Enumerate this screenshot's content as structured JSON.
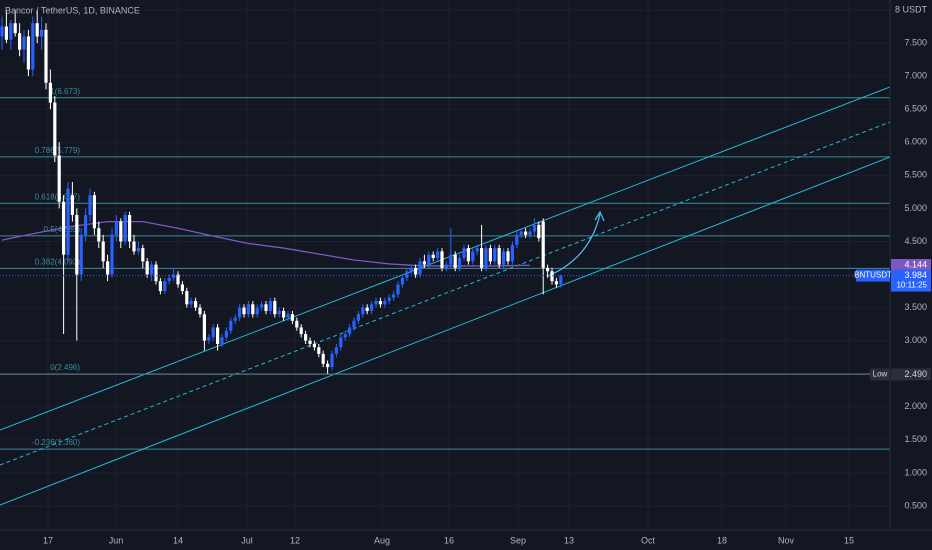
{
  "chart_data": {
    "type": "candlestick",
    "title": "Bancor / TetherUS, 1D, BINANCE",
    "up_color": "#2962ff",
    "down_color": "#ffffff",
    "ma_color": "#7e57c2",
    "channel_color": "#29b6d8",
    "fib_color": "#3a8d9a",
    "ylim": [
      0.5,
      8
    ],
    "yticks": [
      {
        "value": 8,
        "label": "8 USDT"
      },
      {
        "value": 7.5,
        "label": "7.500"
      },
      {
        "value": 7,
        "label": "7.000"
      },
      {
        "value": 6.5,
        "label": "6.500"
      },
      {
        "value": 6,
        "label": "6.000"
      },
      {
        "value": 5.5,
        "label": "5.500"
      },
      {
        "value": 5,
        "label": "5.000"
      },
      {
        "value": 4.5,
        "label": "4.500"
      },
      {
        "value": 3.5,
        "label": "3.500"
      },
      {
        "value": 3,
        "label": "3.000"
      },
      {
        "value": 2,
        "label": "2.000"
      },
      {
        "value": 1.5,
        "label": "1.500"
      },
      {
        "value": 1,
        "label": "1.000"
      },
      {
        "value": 0.5,
        "label": "0.500"
      }
    ],
    "xticks": [
      "17",
      "Jun",
      "14",
      "Jul",
      "12",
      "Aug",
      "16",
      "Sep",
      "13",
      "Oct",
      "18",
      "Nov",
      "15"
    ],
    "fib_levels": [
      {
        "value": 6.673,
        "label": "1(6.673)"
      },
      {
        "value": 5.779,
        "label": "0.786(5.779)"
      },
      {
        "value": 5.077,
        "label": "0.618(5.077)"
      },
      {
        "value": 4.585,
        "label": "0.5(4.585)"
      },
      {
        "value": 4.093,
        "label": "0.382(4.093)"
      },
      {
        "value": 2.496,
        "label": "0(2.496)"
      },
      {
        "value": 1.36,
        "label": "-0.236(1.360)"
      }
    ],
    "ma": [
      4.52,
      4.63,
      4.73,
      4.8,
      4.8,
      4.7,
      4.58,
      4.47,
      4.4,
      4.31,
      4.22,
      4.16,
      4.13,
      4.13,
      4.13,
      4.14
    ],
    "ma_label": {
      "value": 4.144,
      "label": "4.144"
    },
    "last_price": {
      "symbol": "BNTUSDT",
      "value": 3.984,
      "label": "3.984",
      "countdown": "10:11:25"
    },
    "low": {
      "text": "Low",
      "value": 2.49,
      "label": "2.490"
    },
    "candles": [
      [
        7.6,
        7.9,
        7.4,
        7.75
      ],
      [
        7.75,
        8.0,
        7.5,
        7.55
      ],
      [
        7.55,
        7.85,
        7.4,
        7.8
      ],
      [
        7.8,
        8.0,
        7.6,
        7.65
      ],
      [
        7.65,
        7.8,
        7.3,
        7.4
      ],
      [
        7.4,
        7.7,
        7.2,
        7.6
      ],
      [
        7.6,
        7.7,
        7.0,
        7.1
      ],
      [
        7.1,
        7.9,
        7.0,
        7.8
      ],
      [
        7.8,
        8.0,
        7.5,
        7.6
      ],
      [
        7.6,
        7.9,
        7.4,
        7.7
      ],
      [
        7.7,
        7.8,
        6.8,
        6.9
      ],
      [
        6.9,
        7.1,
        6.5,
        6.6
      ],
      [
        6.6,
        6.7,
        5.7,
        5.8
      ],
      [
        5.8,
        6.0,
        5.0,
        5.1
      ],
      [
        5.1,
        5.2,
        3.1,
        4.3
      ],
      [
        4.3,
        5.4,
        4.2,
        5.3
      ],
      [
        5.2,
        5.4,
        4.8,
        4.9
      ],
      [
        4.9,
        5.0,
        3.0,
        4.0
      ],
      [
        4.0,
        4.7,
        3.9,
        4.6
      ],
      [
        4.6,
        5.0,
        4.5,
        4.9
      ],
      [
        4.9,
        5.3,
        4.8,
        5.2
      ],
      [
        5.2,
        5.25,
        4.6,
        4.7
      ],
      [
        4.7,
        4.8,
        4.4,
        4.5
      ],
      [
        4.5,
        4.6,
        4.1,
        4.2
      ],
      [
        4.2,
        4.3,
        3.9,
        4.0
      ],
      [
        4.0,
        4.7,
        3.95,
        4.6
      ],
      [
        4.6,
        4.9,
        4.5,
        4.8
      ],
      [
        4.8,
        4.85,
        4.4,
        4.5
      ],
      [
        4.5,
        4.95,
        4.45,
        4.9
      ],
      [
        4.9,
        4.95,
        4.4,
        4.5
      ],
      [
        4.5,
        4.6,
        4.3,
        4.35
      ],
      [
        4.35,
        4.5,
        4.3,
        4.4
      ],
      [
        4.4,
        4.45,
        4.1,
        4.2
      ],
      [
        4.2,
        4.25,
        3.95,
        4.0
      ],
      [
        4.0,
        4.2,
        3.9,
        4.15
      ],
      [
        4.15,
        4.2,
        3.85,
        3.9
      ],
      [
        3.9,
        3.95,
        3.7,
        3.75
      ],
      [
        3.75,
        3.95,
        3.7,
        3.9
      ],
      [
        3.9,
        4.0,
        3.85,
        3.95
      ],
      [
        3.95,
        4.1,
        3.9,
        4.0
      ],
      [
        4.0,
        4.05,
        3.8,
        3.85
      ],
      [
        3.85,
        3.9,
        3.7,
        3.75
      ],
      [
        3.75,
        3.8,
        3.5,
        3.55
      ],
      [
        3.55,
        3.65,
        3.5,
        3.6
      ],
      [
        3.6,
        3.65,
        3.45,
        3.5
      ],
      [
        3.5,
        3.55,
        3.35,
        3.4
      ],
      [
        3.4,
        3.45,
        2.85,
        3.0
      ],
      [
        3.0,
        3.1,
        2.95,
        3.05
      ],
      [
        3.05,
        3.25,
        3.0,
        3.2
      ],
      [
        3.2,
        3.25,
        2.85,
        2.95
      ],
      [
        2.95,
        3.1,
        2.9,
        3.05
      ],
      [
        3.05,
        3.2,
        3.0,
        3.15
      ],
      [
        3.15,
        3.35,
        3.1,
        3.3
      ],
      [
        3.3,
        3.4,
        3.25,
        3.35
      ],
      [
        3.35,
        3.55,
        3.3,
        3.5
      ],
      [
        3.5,
        3.55,
        3.35,
        3.4
      ],
      [
        3.4,
        3.6,
        3.35,
        3.55
      ],
      [
        3.55,
        3.6,
        3.35,
        3.4
      ],
      [
        3.4,
        3.55,
        3.35,
        3.5
      ],
      [
        3.5,
        3.6,
        3.45,
        3.55
      ],
      [
        3.55,
        3.6,
        3.4,
        3.45
      ],
      [
        3.45,
        3.65,
        3.4,
        3.6
      ],
      [
        3.6,
        3.65,
        3.35,
        3.4
      ],
      [
        3.4,
        3.5,
        3.35,
        3.45
      ],
      [
        3.45,
        3.5,
        3.3,
        3.35
      ],
      [
        3.35,
        3.45,
        3.3,
        3.4
      ],
      [
        3.4,
        3.45,
        3.25,
        3.3
      ],
      [
        3.3,
        3.35,
        3.15,
        3.2
      ],
      [
        3.2,
        3.25,
        3.05,
        3.1
      ],
      [
        3.1,
        3.15,
        2.95,
        3.0
      ],
      [
        3.0,
        3.05,
        2.9,
        2.95
      ],
      [
        2.95,
        3.0,
        2.85,
        2.9
      ],
      [
        2.9,
        2.95,
        2.75,
        2.8
      ],
      [
        2.8,
        2.85,
        2.6,
        2.65
      ],
      [
        2.65,
        2.7,
        2.5,
        2.6
      ],
      [
        2.6,
        2.85,
        2.55,
        2.8
      ],
      [
        2.8,
        2.95,
        2.75,
        2.9
      ],
      [
        2.9,
        3.1,
        2.85,
        3.05
      ],
      [
        3.05,
        3.15,
        3.0,
        3.1
      ],
      [
        3.1,
        3.25,
        3.05,
        3.2
      ],
      [
        3.2,
        3.35,
        3.15,
        3.3
      ],
      [
        3.3,
        3.45,
        3.25,
        3.4
      ],
      [
        3.4,
        3.55,
        3.35,
        3.5
      ],
      [
        3.5,
        3.55,
        3.4,
        3.45
      ],
      [
        3.45,
        3.6,
        3.4,
        3.55
      ],
      [
        3.55,
        3.65,
        3.5,
        3.6
      ],
      [
        3.6,
        3.65,
        3.5,
        3.55
      ],
      [
        3.55,
        3.65,
        3.5,
        3.6
      ],
      [
        3.6,
        3.7,
        3.55,
        3.65
      ],
      [
        3.65,
        3.75,
        3.6,
        3.7
      ],
      [
        3.7,
        3.9,
        3.65,
        3.85
      ],
      [
        3.85,
        4.0,
        3.8,
        3.95
      ],
      [
        3.95,
        4.1,
        3.9,
        4.05
      ],
      [
        4.05,
        4.15,
        4.0,
        4.1
      ],
      [
        4.1,
        4.15,
        3.95,
        4.0
      ],
      [
        4.0,
        4.25,
        3.95,
        4.2
      ],
      [
        4.2,
        4.3,
        4.1,
        4.15
      ],
      [
        4.15,
        4.35,
        4.1,
        4.3
      ],
      [
        4.3,
        4.35,
        4.2,
        4.25
      ],
      [
        4.25,
        4.4,
        4.2,
        4.35
      ],
      [
        4.35,
        4.4,
        4.05,
        4.1
      ],
      [
        4.1,
        4.2,
        4.05,
        4.15
      ],
      [
        4.15,
        4.7,
        4.1,
        4.3
      ],
      [
        4.3,
        4.35,
        4.05,
        4.1
      ],
      [
        4.1,
        4.3,
        4.05,
        4.25
      ],
      [
        4.25,
        4.45,
        4.2,
        4.4
      ],
      [
        4.4,
        4.45,
        4.15,
        4.2
      ],
      [
        4.2,
        4.4,
        4.15,
        4.35
      ],
      [
        4.35,
        4.45,
        4.3,
        4.4
      ],
      [
        4.4,
        4.75,
        4.05,
        4.1
      ],
      [
        4.1,
        4.45,
        4.05,
        4.4
      ],
      [
        4.4,
        4.45,
        4.15,
        4.2
      ],
      [
        4.2,
        4.45,
        4.15,
        4.4
      ],
      [
        4.4,
        4.45,
        4.1,
        4.15
      ],
      [
        4.15,
        4.4,
        4.1,
        4.35
      ],
      [
        4.35,
        4.4,
        4.15,
        4.2
      ],
      [
        4.2,
        4.5,
        4.15,
        4.45
      ],
      [
        4.45,
        4.65,
        4.4,
        4.6
      ],
      [
        4.6,
        4.7,
        4.55,
        4.65
      ],
      [
        4.65,
        4.7,
        4.55,
        4.6
      ],
      [
        4.6,
        4.7,
        4.55,
        4.65
      ],
      [
        4.65,
        4.85,
        4.6,
        4.75
      ],
      [
        4.75,
        4.8,
        4.5,
        4.55
      ],
      [
        4.8,
        4.85,
        3.7,
        4.1
      ],
      [
        4.1,
        4.15,
        3.95,
        4.05
      ],
      [
        4.05,
        4.1,
        3.85,
        3.9
      ],
      [
        3.9,
        3.95,
        3.8,
        3.85
      ],
      [
        3.85,
        4.0,
        3.8,
        3.98
      ]
    ]
  }
}
